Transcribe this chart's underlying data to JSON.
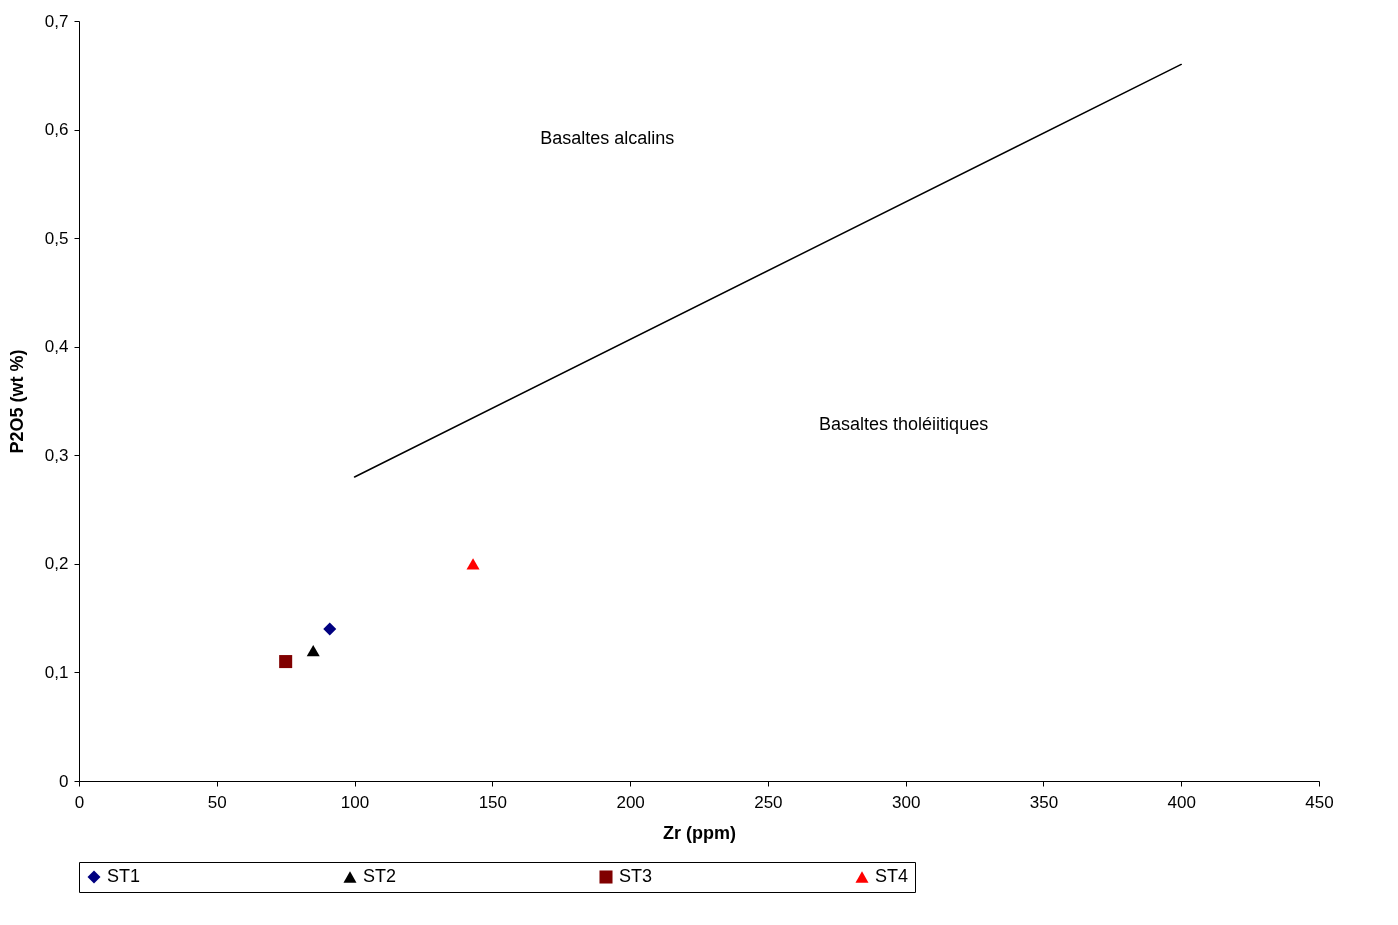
{
  "chart_data": {
    "type": "scatter",
    "xlabel": "Zr (ppm)",
    "ylabel": "P2O5 (wt %)",
    "xlim": [
      0,
      450
    ],
    "xticks": [
      0,
      50,
      100,
      150,
      200,
      250,
      300,
      350,
      400,
      450
    ],
    "ylim": [
      0,
      0.7
    ],
    "yticks": [
      0,
      {
        "value": 0.1,
        "label": "0,1"
      },
      {
        "value": 0.2,
        "label": "0,2"
      },
      {
        "value": 0.3,
        "label": "0,3"
      },
      {
        "value": 0.4,
        "label": "0,4"
      },
      {
        "value": 0.5,
        "label": "0,5"
      },
      {
        "value": 0.6,
        "label": "0,6"
      },
      {
        "value": 0.7,
        "label": "0,7"
      }
    ],
    "grid": false,
    "legend": "bottom",
    "series": [
      {
        "name": "ST1",
        "color": "#000080",
        "marker": "diamond",
        "x": [
          91
        ],
        "values": [
          0.14
        ]
      },
      {
        "name": "ST2",
        "color": "#000000",
        "marker": "triangle",
        "x": [
          85
        ],
        "values": [
          0.12
        ]
      },
      {
        "name": "ST3",
        "color": "#800000",
        "marker": "square",
        "x": [
          75
        ],
        "values": [
          0.11
        ]
      },
      {
        "name": "ST4",
        "color": "#ff0000",
        "marker": "triangle",
        "x": [
          143
        ],
        "values": [
          0.2
        ]
      },
      {
        "type": "line",
        "color": "#000000",
        "marker": "none",
        "x": [
          100,
          400
        ],
        "values": [
          0.28,
          0.66
        ]
      }
    ],
    "annotations": [
      "Basaltes alcalins",
      "Basaltes tholéiitiques"
    ]
  }
}
